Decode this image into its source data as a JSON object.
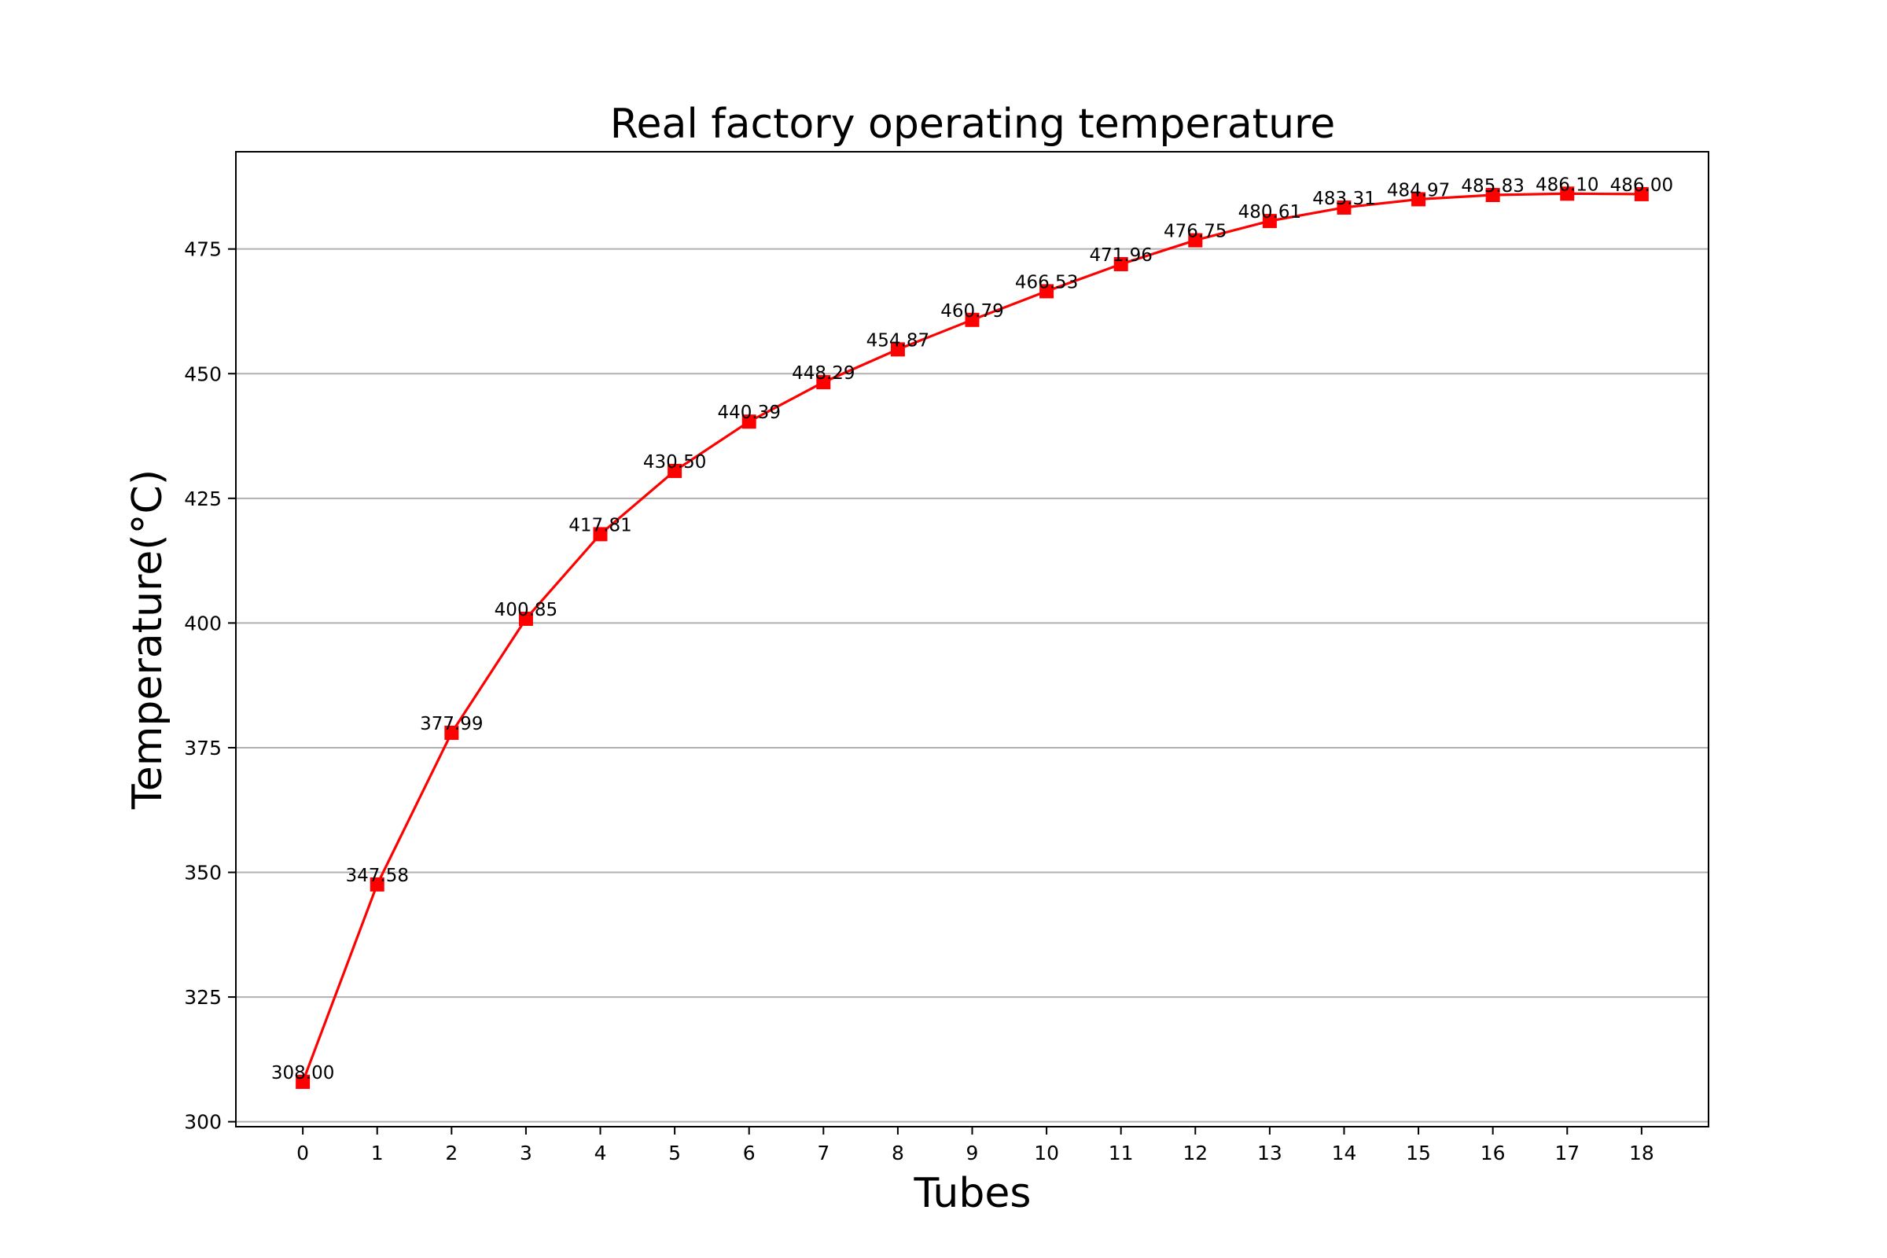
{
  "chart_data": {
    "type": "line",
    "title": "Real factory operating temperature",
    "xlabel": "Tubes",
    "ylabel": "Temperature(°C)",
    "x": [
      0,
      1,
      2,
      3,
      4,
      5,
      6,
      7,
      8,
      9,
      10,
      11,
      12,
      13,
      14,
      15,
      16,
      17,
      18
    ],
    "x_ticks": [
      "0",
      "1",
      "2",
      "3",
      "4",
      "5",
      "6",
      "7",
      "8",
      "9",
      "10",
      "11",
      "12",
      "13",
      "14",
      "15",
      "16",
      "17",
      "18"
    ],
    "y_ticks": [
      "300",
      "325",
      "350",
      "375",
      "400",
      "425",
      "450",
      "475"
    ],
    "series": [
      {
        "color": "#ff0000",
        "marker": "square",
        "values": [
          308.0,
          347.58,
          377.99,
          400.85,
          417.81,
          430.5,
          440.39,
          448.29,
          454.87,
          460.79,
          466.53,
          471.96,
          476.75,
          480.61,
          483.31,
          484.97,
          485.83,
          486.1,
          486.0
        ],
        "labels": [
          "308.00",
          "347.58",
          "377.99",
          "400.85",
          "417.81",
          "430.50",
          "440.39",
          "448.29",
          "454.87",
          "460.79",
          "466.53",
          "471.96",
          "476.75",
          "480.61",
          "483.31",
          "484.97",
          "485.83",
          "486.10",
          "486.00"
        ]
      }
    ],
    "xlim": [
      -0.9,
      18.9
    ],
    "ylim": [
      299,
      494.5
    ],
    "grid": "y-axis only",
    "legend": "none"
  }
}
